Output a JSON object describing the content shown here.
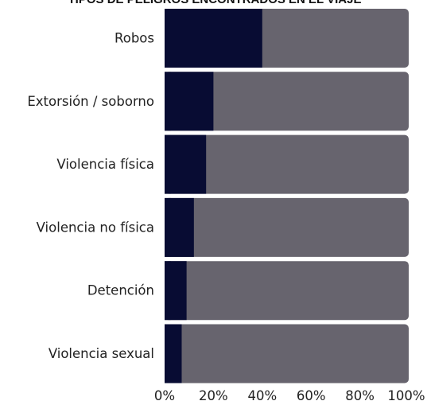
{
  "chart_data": {
    "type": "bar",
    "orientation": "horizontal",
    "stacked": true,
    "title": "TIPOS DE PELIGROS ENCONTRADOS EN EL VIAJE",
    "categories": [
      "Robos",
      "Extorsión / soborno",
      "Violencia física",
      "Violencia no física",
      "Detención",
      "Violencia sexual"
    ],
    "series": [
      {
        "values": [
          40,
          20,
          17,
          12,
          9,
          7
        ]
      },
      {
        "values": [
          60,
          80,
          83,
          88,
          91,
          93
        ]
      }
    ],
    "xlim": [
      0,
      100
    ],
    "x_ticks": [
      "0%",
      "20%",
      "40%",
      "60%",
      "80%",
      "100%"
    ],
    "grid": false,
    "legend": "none",
    "colors": {
      "series_0": "#080c33",
      "series_1": "#67646e"
    }
  }
}
